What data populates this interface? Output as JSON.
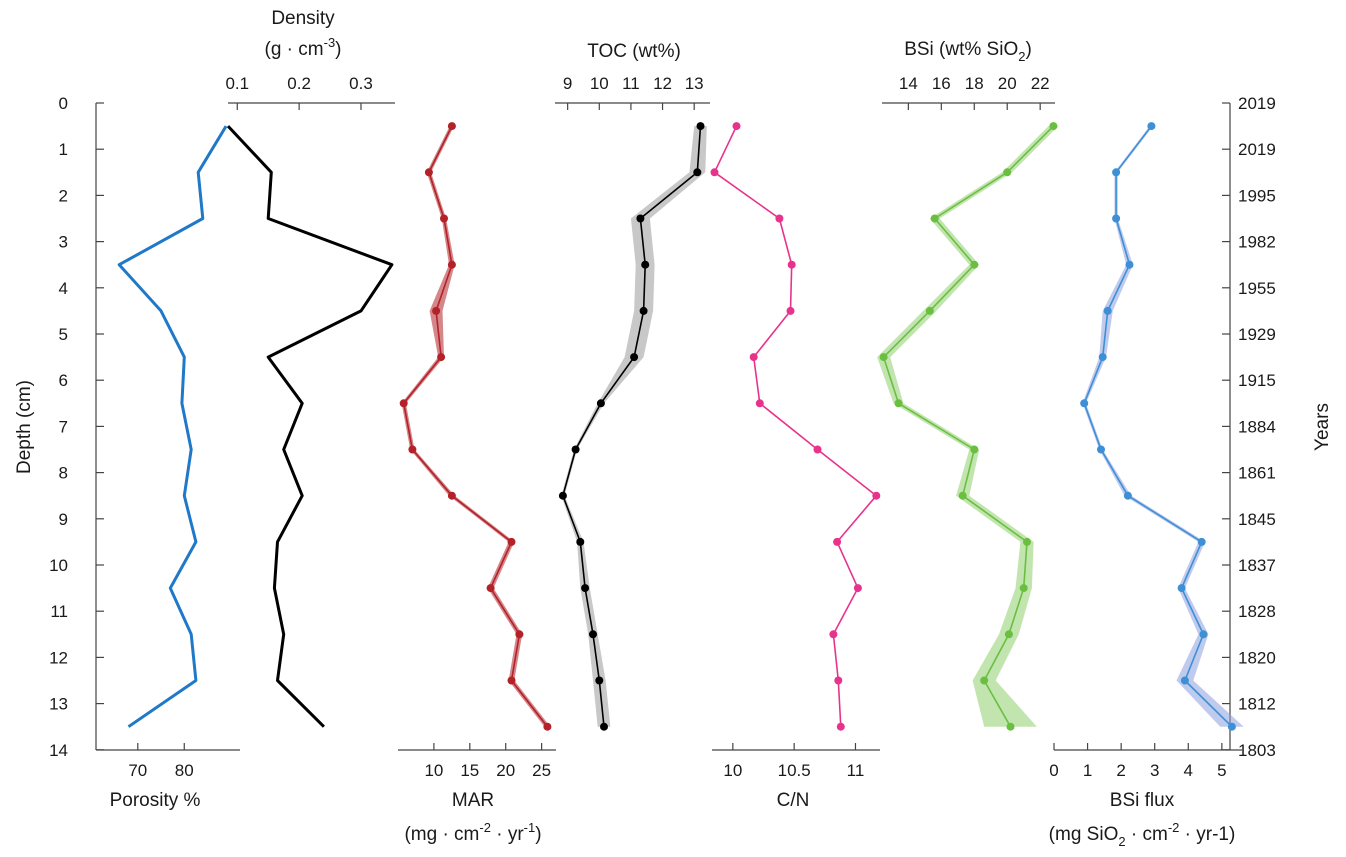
{
  "chart_data": {
    "type": "line",
    "orientation": "depth-profile",
    "depth_axis": {
      "label": "Depth (cm)",
      "range": [
        0,
        14
      ],
      "ticks": [
        "0",
        "1",
        "2",
        "3",
        "4",
        "5",
        "6",
        "7",
        "8",
        "9",
        "10",
        "11",
        "12",
        "13",
        "14"
      ]
    },
    "years_axis": {
      "label": "Years",
      "ticks": [
        "2019",
        "2019",
        "1995",
        "1982",
        "1955",
        "1929",
        "1915",
        "1884",
        "1861",
        "1845",
        "1837",
        "1828",
        "1820",
        "1812",
        "1803"
      ]
    },
    "depths": [
      0.5,
      1.5,
      2.5,
      3.5,
      4.5,
      5.5,
      6.5,
      7.5,
      8.5,
      9.5,
      10.5,
      11.5,
      12.5,
      13.5
    ],
    "series": [
      {
        "name": "Porosity",
        "xlabel": "Porosity %",
        "axis_position": "bottom",
        "xlim": [
          61,
          92
        ],
        "ticks": [
          "70",
          "80"
        ],
        "tick_values": [
          70,
          80
        ],
        "color": "#1f78c8",
        "markers": false,
        "values": [
          89,
          83,
          84,
          66,
          75,
          80,
          79.5,
          81.5,
          80,
          82.5,
          77,
          81.5,
          82.5,
          68
        ]
      },
      {
        "name": "Density",
        "xlabel_line1": "Density",
        "xlabel_line2_prefix": "(g · cm",
        "xlabel_line2_sup": "-3",
        "xlabel_line2_suffix": ")",
        "axis_position": "top",
        "xlim": [
          0.085,
          0.355
        ],
        "ticks": [
          "0.1",
          "0.2",
          "0.3"
        ],
        "tick_values": [
          0.1,
          0.2,
          0.3
        ],
        "color": "#000000",
        "markers": false,
        "values": [
          0.085,
          0.155,
          0.15,
          0.35,
          0.3,
          0.15,
          0.205,
          0.175,
          0.205,
          0.165,
          0.16,
          0.175,
          0.165,
          0.24
        ]
      },
      {
        "name": "MAR",
        "xlabel_line1": "MAR",
        "xlabel_line2_prefix": "(mg · cm",
        "xlabel_line2_sup": "-2",
        "xlabel_line2_suffix": " · yr",
        "xlabel_line2_sup2": "-1",
        "xlabel_line2_end": ")",
        "axis_position": "bottom",
        "xlim": [
          5,
          27
        ],
        "ticks": [
          "10",
          "15",
          "20",
          "25"
        ],
        "tick_values": [
          10,
          15,
          20,
          25
        ],
        "color": "#b22228",
        "markers": true,
        "values": [
          12.5,
          9.3,
          11.4,
          12.5,
          10.3,
          11.0,
          5.8,
          7.0,
          12.5,
          20.8,
          17.9,
          21.9,
          20.8,
          25.8
        ],
        "band": [
          0.3,
          0.3,
          0.3,
          0.4,
          0.9,
          0.4,
          0.3,
          0.3,
          0.4,
          0.4,
          0.4,
          0.4,
          0.4,
          0.4
        ]
      },
      {
        "name": "TOC",
        "xlabel": "TOC (wt%)",
        "axis_position": "top",
        "xlim": [
          8.6,
          13.5
        ],
        "ticks": [
          "9",
          "10",
          "11",
          "12",
          "13"
        ],
        "tick_values": [
          9,
          10,
          11,
          12,
          13
        ],
        "color": "#000000",
        "markers": true,
        "values": [
          13.2,
          13.1,
          11.3,
          11.45,
          11.4,
          11.1,
          10.05,
          9.25,
          8.85,
          9.4,
          9.55,
          9.8,
          10.0,
          10.15
        ],
        "band": [
          0.2,
          0.25,
          0.3,
          0.3,
          0.3,
          0.3,
          0.1,
          0.05,
          0.05,
          0.1,
          0.15,
          0.15,
          0.2,
          0.2
        ],
        "band_color": "#9a9a9a"
      },
      {
        "name": "C/N",
        "xlabel": "C/N",
        "axis_position": "bottom",
        "xlim": [
          9.83,
          11.2
        ],
        "ticks": [
          "10",
          "10.5",
          "11"
        ],
        "tick_values": [
          10,
          10.5,
          11
        ],
        "color": "#e8338d",
        "markers": true,
        "values": [
          10.03,
          9.85,
          10.38,
          10.48,
          10.47,
          10.17,
          10.22,
          10.69,
          11.17,
          10.85,
          11.02,
          10.82,
          10.86,
          10.88
        ]
      },
      {
        "name": "BSi",
        "xlabel_prefix": "BSi (wt% SiO",
        "xlabel_sub": "2",
        "xlabel_suffix": ")",
        "axis_position": "top",
        "xlim": [
          12.4,
          22.9
        ],
        "ticks": [
          "14",
          "16",
          "18",
          "20",
          "22"
        ],
        "tick_values": [
          14,
          16,
          18,
          20,
          22
        ],
        "color": "#6abf40",
        "markers": true,
        "values": [
          22.8,
          20.0,
          15.6,
          18.0,
          15.3,
          12.5,
          13.4,
          18.0,
          17.3,
          21.2,
          21.0,
          20.1,
          18.6,
          20.2
        ],
        "band": [
          0.3,
          0.3,
          0.3,
          0.3,
          0.4,
          0.4,
          0.3,
          0.3,
          0.4,
          0.4,
          0.5,
          0.6,
          0.7,
          1.6
        ],
        "band_color": "#8fcf6e"
      },
      {
        "name": "BSi flux",
        "xlabel_line1": "BSi flux",
        "xlabel_line2_prefix": "(mg SiO",
        "xlabel_line2_sub": "2",
        "xlabel_line2_mid": " · cm",
        "xlabel_line2_sup": "-2",
        "xlabel_line2_suffix": " · yr-1)",
        "axis_position": "bottom",
        "xlim": [
          0,
          5.6
        ],
        "ticks": [
          "0",
          "1",
          "2",
          "3",
          "4",
          "5"
        ],
        "tick_values": [
          0,
          1,
          2,
          3,
          4,
          5
        ],
        "color": "#3d8fd6",
        "markers": true,
        "values": [
          2.9,
          1.85,
          1.85,
          2.25,
          1.6,
          1.45,
          0.9,
          1.4,
          2.2,
          4.4,
          3.8,
          4.45,
          3.9,
          5.3
        ],
        "band": [
          0.05,
          0.05,
          0.05,
          0.1,
          0.15,
          0.1,
          0.05,
          0.05,
          0.1,
          0.1,
          0.1,
          0.15,
          0.25,
          0.35
        ],
        "band_color": "#8a9ede"
      }
    ]
  }
}
